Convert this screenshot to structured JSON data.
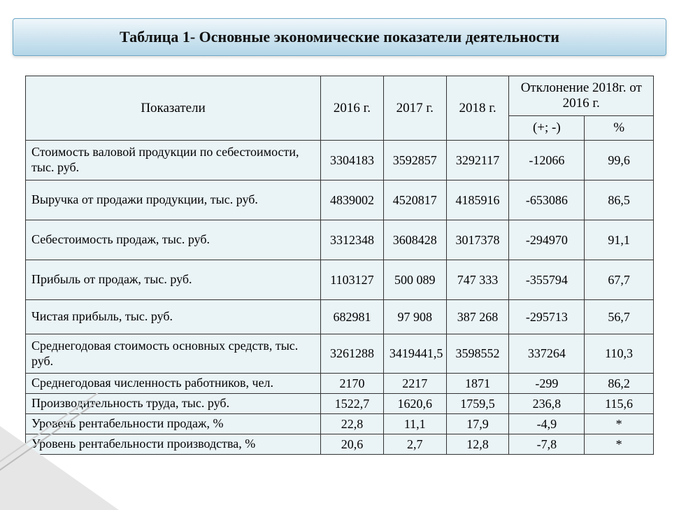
{
  "title": "Таблица 1- Основные экономические показатели деятельности",
  "table": {
    "background_color": "#eaf3f6",
    "border_color": "#333333",
    "font_family": "Times New Roman",
    "header_fontsize": 19,
    "cell_fontsize": 18,
    "col_widths_pct": [
      47,
      10,
      10,
      10,
      12,
      11
    ],
    "header": {
      "indicator": "Показатели",
      "y2016": "2016 г.",
      "y2017": "2017 г.",
      "y2018": "2018 г.",
      "deviation_group": "Отклонение 2018г. от 2016 г.",
      "dev_abs": "(+; -)",
      "dev_pct": "%"
    },
    "rows": [
      {
        "h": "tall",
        "label": "Стоимость валовой продукции по себестоимости, тыс. руб.",
        "y2016": "3304183",
        "y2017": "3592857",
        "y2018": "3292117",
        "dev_abs": "-12066",
        "dev_pct": "99,6"
      },
      {
        "h": "tall",
        "label": "Выручка от продажи продукции, тыс. руб.",
        "y2016": "4839002",
        "y2017": "4520817",
        "y2018": "4185916",
        "dev_abs": "-653086",
        "dev_pct": "86,5"
      },
      {
        "h": "tall",
        "label": "Себестоимость продаж, тыс. руб.",
        "y2016": "3312348",
        "y2017": "3608428",
        "y2018": "3017378",
        "dev_abs": "-294970",
        "dev_pct": "91,1"
      },
      {
        "h": "tall",
        "label": "Прибыль от продаж, тыс. руб.",
        "y2016": "1103127",
        "y2017": "500 089",
        "y2018": "747 333",
        "dev_abs": "-355794",
        "dev_pct": "67,7"
      },
      {
        "h": "med",
        "label": "Чистая прибыль, тыс. руб.",
        "y2016": "682981",
        "y2017": "97 908",
        "y2018": "387 268",
        "dev_abs": "-295713",
        "dev_pct": "56,7"
      },
      {
        "h": "med",
        "label": "Среднегодовая стоимость основных средств, тыс. руб.",
        "y2016": "3261288",
        "y2017": "3419441,5",
        "y2018": "3598552",
        "dev_abs": "337264",
        "dev_pct": "110,3"
      },
      {
        "h": "short",
        "label": "Среднегодовая численность работников, чел.",
        "y2016": "2170",
        "y2017": "2217",
        "y2018": "1871",
        "dev_abs": "-299",
        "dev_pct": "86,2"
      },
      {
        "h": "short",
        "label": "Производительность труда, тыс. руб.",
        "y2016": "1522,7",
        "y2017": "1620,6",
        "y2018": "1759,5",
        "dev_abs": "236,8",
        "dev_pct": "115,6"
      },
      {
        "h": "short",
        "label": "Уровень рентабельности продаж, %",
        "y2016": "22,8",
        "y2017": "11,1",
        "y2018": "17,9",
        "dev_abs": "-4,9",
        "dev_pct": "*"
      },
      {
        "h": "short",
        "label": "Уровень рентабельности производства, %",
        "y2016": "20,6",
        "y2017": "2,7",
        "y2018": "12,8",
        "dev_abs": "-7,8",
        "dev_pct": "*"
      }
    ]
  },
  "title_bar": {
    "gradient_top": "#f0f7fb",
    "gradient_mid": "#d0e5f0",
    "gradient_bottom": "#b3d6e8",
    "border_color": "#6fa8c6",
    "fontsize": 22,
    "font_weight": "bold"
  }
}
